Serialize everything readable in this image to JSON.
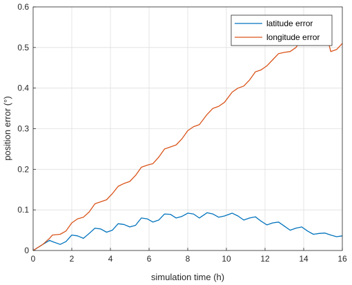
{
  "chart_data": {
    "type": "line",
    "title": "",
    "xlabel": "simulation time (h)",
    "ylabel": "position error (°)",
    "xlim": [
      0,
      16
    ],
    "ylim": [
      0,
      0.6
    ],
    "xticks": [
      "0",
      "2",
      "4",
      "6",
      "8",
      "10",
      "12",
      "14",
      "16"
    ],
    "yticks": [
      "0",
      "0.1",
      "0.2",
      "0.3",
      "0.4",
      "0.5",
      "0.6"
    ],
    "grid": true,
    "legend_position": "top-right",
    "x": [
      0,
      0.5,
      0.85,
      1.0,
      1.4,
      1.7,
      2.0,
      2.3,
      2.6,
      2.9,
      3.2,
      3.5,
      3.8,
      4.1,
      4.4,
      4.7,
      5.0,
      5.3,
      5.6,
      5.9,
      6.2,
      6.5,
      6.8,
      7.1,
      7.4,
      7.7,
      8.0,
      8.3,
      8.6,
      9.0,
      9.3,
      9.6,
      9.9,
      10.3,
      10.6,
      10.9,
      11.2,
      11.5,
      11.8,
      12.1,
      12.4,
      12.7,
      13.0,
      13.3,
      13.6,
      13.9,
      14.2,
      14.5,
      14.8,
      15.1,
      15.4,
      15.7,
      16.0
    ],
    "series": [
      {
        "name": "latitude error",
        "color": "#0072BD",
        "values": [
          0.0,
          0.015,
          0.025,
          0.022,
          0.015,
          0.022,
          0.038,
          0.036,
          0.03,
          0.042,
          0.055,
          0.053,
          0.045,
          0.05,
          0.066,
          0.064,
          0.058,
          0.062,
          0.08,
          0.078,
          0.07,
          0.075,
          0.09,
          0.089,
          0.08,
          0.084,
          0.092,
          0.09,
          0.08,
          0.093,
          0.09,
          0.082,
          0.085,
          0.092,
          0.085,
          0.075,
          0.08,
          0.083,
          0.072,
          0.063,
          0.068,
          0.07,
          0.06,
          0.05,
          0.055,
          0.058,
          0.048,
          0.04,
          0.042,
          0.043,
          0.038,
          0.034,
          0.036
        ]
      },
      {
        "name": "longitude error",
        "color": "#D95319",
        "values": [
          0.0,
          0.015,
          0.03,
          0.038,
          0.04,
          0.048,
          0.068,
          0.078,
          0.082,
          0.095,
          0.115,
          0.12,
          0.125,
          0.14,
          0.158,
          0.165,
          0.17,
          0.185,
          0.205,
          0.21,
          0.214,
          0.23,
          0.25,
          0.255,
          0.26,
          0.275,
          0.295,
          0.305,
          0.31,
          0.335,
          0.35,
          0.355,
          0.365,
          0.39,
          0.4,
          0.405,
          0.42,
          0.44,
          0.445,
          0.455,
          0.47,
          0.485,
          0.488,
          0.49,
          0.5,
          0.52,
          0.53,
          0.535,
          0.54,
          0.548,
          0.49,
          0.495,
          0.51
        ]
      }
    ]
  }
}
